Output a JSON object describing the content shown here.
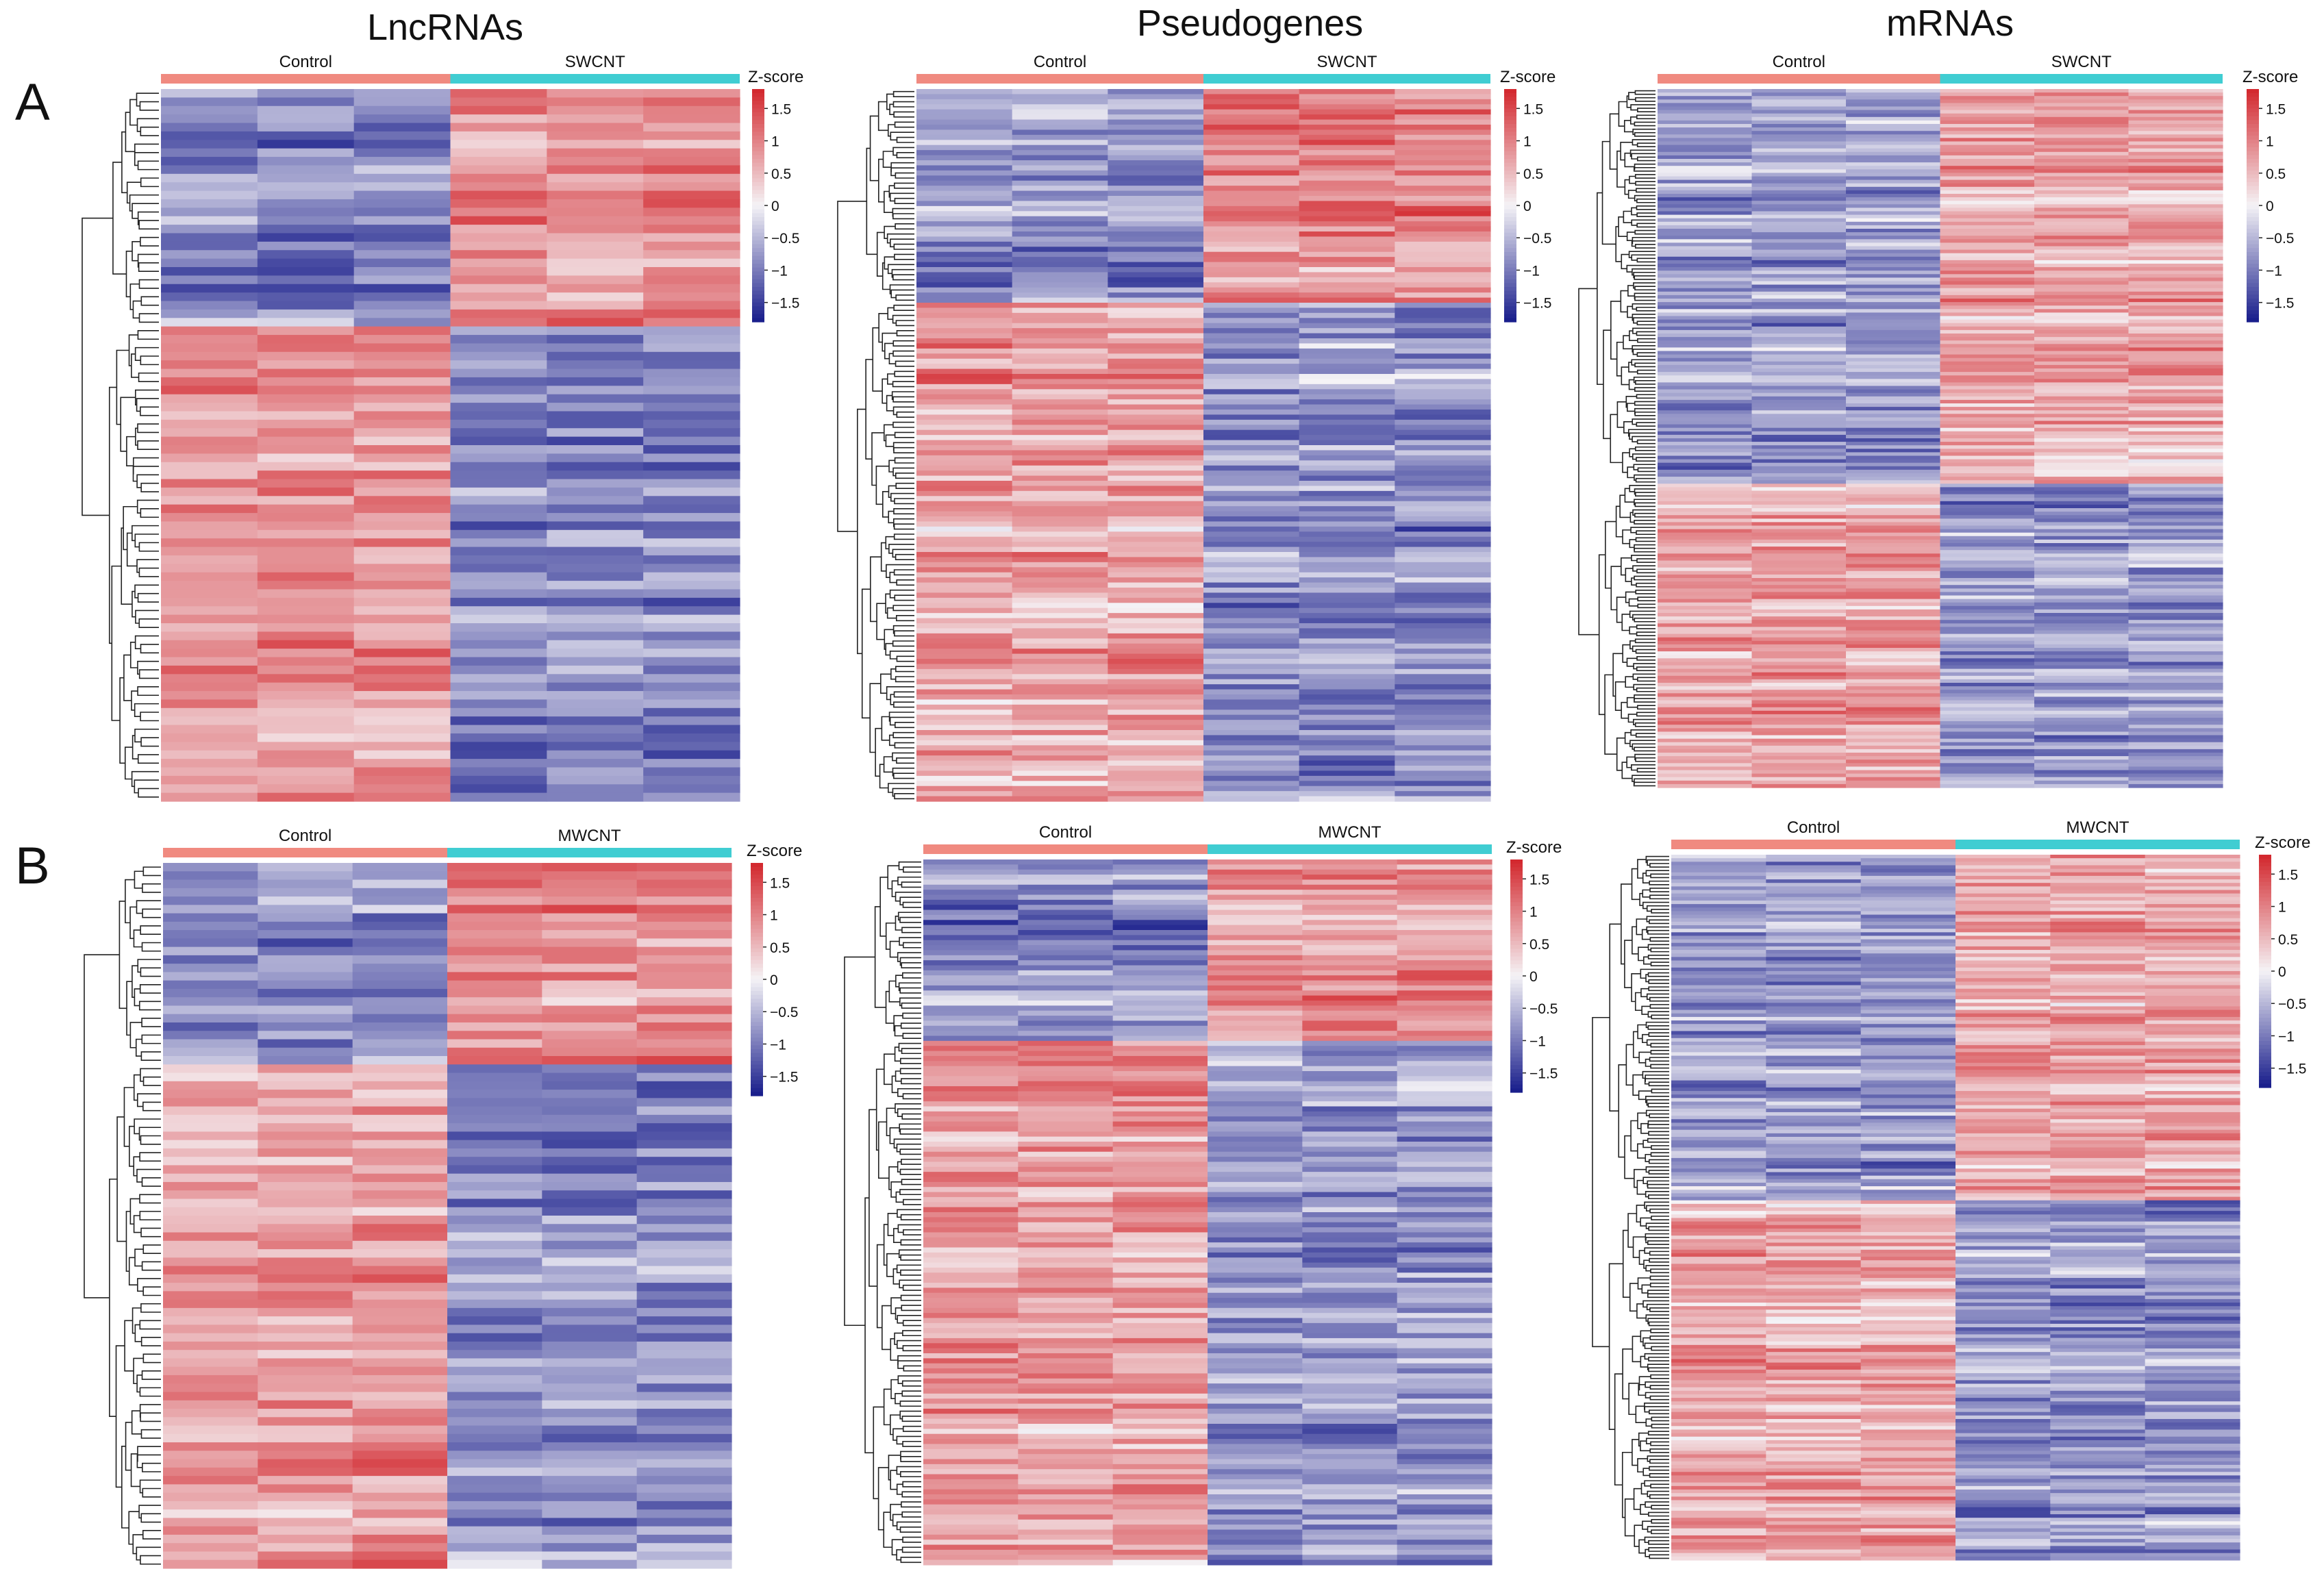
{
  "colors": {
    "low": "#1a1f8c",
    "mid": "#f5f3f6",
    "high": "#d3292f",
    "control_bar": "#f08a80",
    "treat_bar": "#40cdd2",
    "dendrogram": "#222222"
  },
  "figure": {
    "column_titles": [
      "LncRNAs",
      "Pseudogenes",
      "mRNAs"
    ],
    "row_labels": [
      "A",
      "B"
    ]
  },
  "chart_data": [
    {
      "type": "heatmap",
      "panel": "A",
      "title": "LncRNAs",
      "groups": [
        "Control",
        "SWCNT"
      ],
      "columns": 6,
      "rows": 84,
      "clusters": [
        {
          "rows": 28,
          "control_mean": -0.9,
          "treat_mean": 0.9
        },
        {
          "rows": 56,
          "control_mean": 0.8,
          "treat_mean": -0.9
        }
      ],
      "legend_title": "Z-score",
      "legend_ticks": [
        "1.5",
        "1",
        "0.5",
        "0",
        "−0.5",
        "−1",
        "−1.5"
      ],
      "zlim": [
        -1.8,
        1.8
      ]
    },
    {
      "type": "heatmap",
      "panel": "A",
      "title": "Pseudogenes",
      "groups": [
        "Control",
        "SWCNT"
      ],
      "columns": 6,
      "rows": 140,
      "clusters": [
        {
          "rows": 42,
          "control_mean": -0.9,
          "treat_mean": 0.85
        },
        {
          "rows": 98,
          "control_mean": 0.75,
          "treat_mean": -0.8
        }
      ],
      "legend_title": "Z-score",
      "legend_ticks": [
        "1.5",
        "1",
        "0.5",
        "0",
        "−0.5",
        "−1",
        "−1.5"
      ],
      "zlim": [
        -1.8,
        1.8
      ]
    },
    {
      "type": "heatmap",
      "panel": "A",
      "title": "mRNAs",
      "groups": [
        "Control",
        "SWCNT"
      ],
      "columns": 6,
      "rows": 200,
      "clusters": [
        {
          "rows": 113,
          "control_mean": -0.75,
          "treat_mean": 0.65
        },
        {
          "rows": 87,
          "control_mean": 0.7,
          "treat_mean": -0.75
        }
      ],
      "legend_title": "Z-score",
      "legend_ticks": [
        "1.5",
        "1",
        "0.5",
        "0",
        "−0.5",
        "−1",
        "−1.5"
      ],
      "zlim": [
        -1.8,
        1.8
      ]
    },
    {
      "type": "heatmap",
      "panel": "B",
      "title": "LncRNAs",
      "groups": [
        "Control",
        "MWCNT"
      ],
      "columns": 6,
      "rows": 84,
      "clusters": [
        {
          "rows": 24,
          "control_mean": -0.85,
          "treat_mean": 0.9
        },
        {
          "rows": 60,
          "control_mean": 0.75,
          "treat_mean": -0.85
        }
      ],
      "legend_title": "Z-score",
      "legend_ticks": [
        "1.5",
        "1",
        "0.5",
        "0",
        "−0.5",
        "−1",
        "−1.5"
      ],
      "zlim": [
        -1.8,
        1.8
      ]
    },
    {
      "type": "heatmap",
      "panel": "B",
      "title": "Pseudogenes",
      "groups": [
        "Control",
        "MWCNT"
      ],
      "columns": 6,
      "rows": 140,
      "clusters": [
        {
          "rows": 36,
          "control_mean": -0.85,
          "treat_mean": 0.85
        },
        {
          "rows": 104,
          "control_mean": 0.75,
          "treat_mean": -0.8
        }
      ],
      "legend_title": "Z-score",
      "legend_ticks": [
        "1.5",
        "1",
        "0.5",
        "0",
        "−0.5",
        "−1",
        "−1.5"
      ],
      "zlim": [
        -1.8,
        1.8
      ]
    },
    {
      "type": "heatmap",
      "panel": "B",
      "title": "mRNAs",
      "groups": [
        "Control",
        "MWCNT"
      ],
      "columns": 6,
      "rows": 200,
      "clusters": [
        {
          "rows": 98,
          "control_mean": -0.75,
          "treat_mean": 0.7
        },
        {
          "rows": 102,
          "control_mean": 0.7,
          "treat_mean": -0.75
        }
      ],
      "legend_title": "Z-score",
      "legend_ticks": [
        "1.5",
        "1",
        "0.5",
        "0",
        "−0.5",
        "−1",
        "−1.5"
      ],
      "zlim": [
        -1.8,
        1.8
      ]
    }
  ]
}
